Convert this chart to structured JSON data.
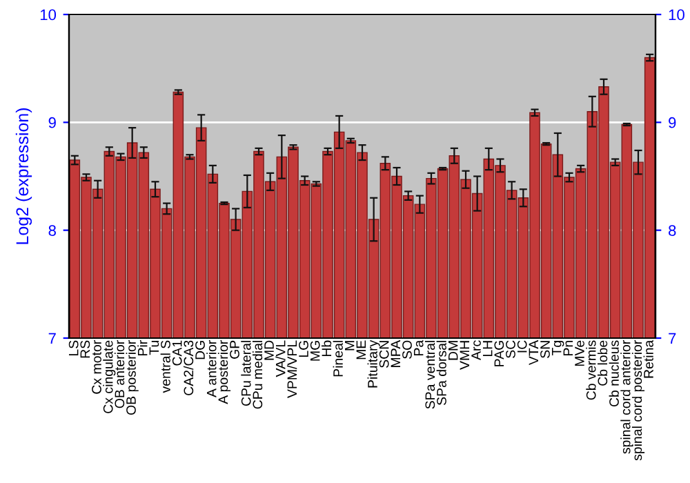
{
  "chart_data": {
    "type": "bar",
    "ylabel": "Log2 (expression)",
    "categories": [
      "LS",
      "RS",
      "Cx motor",
      "Cx cingulate",
      "OB anterior",
      "OB posterior",
      "Pir",
      "Tu",
      "ventral S",
      "CA1",
      "CA2/CA3",
      "DG",
      "A anterior",
      "A posterior",
      "GP",
      "CPu lateral",
      "CPu medial",
      "MD",
      "VA/VL",
      "VPM/VPL",
      "LG",
      "MG",
      "Hb",
      "Pineal",
      "M",
      "ME",
      "Pituitary",
      "SCN",
      "MPA",
      "SO",
      "Pa",
      "SPa ventral",
      "SPa dorsal",
      "DM",
      "VMH",
      "Arc",
      "LH",
      "PAG",
      "SC",
      "IC",
      "VTA",
      "SN",
      "Tg",
      "Pn",
      "MVe",
      "Cb vermis",
      "Cb lobe",
      "Cb nucleus",
      "spinal cord anterior",
      "spinal cord posterior",
      "Retina"
    ],
    "values": [
      8.65,
      8.49,
      8.38,
      8.73,
      8.68,
      8.81,
      8.72,
      8.38,
      8.2,
      9.28,
      8.68,
      8.95,
      8.52,
      8.25,
      8.1,
      8.36,
      8.73,
      8.45,
      8.68,
      8.77,
      8.46,
      8.43,
      8.73,
      8.91,
      8.83,
      8.72,
      8.1,
      8.62,
      8.5,
      8.32,
      8.24,
      8.48,
      8.57,
      8.69,
      8.47,
      8.34,
      8.66,
      8.6,
      8.37,
      8.3,
      9.09,
      8.8,
      8.7,
      8.49,
      8.57,
      9.1,
      9.33,
      8.63,
      8.98,
      8.63,
      9.6
    ],
    "errors": [
      0.04,
      0.03,
      0.08,
      0.04,
      0.03,
      0.14,
      0.05,
      0.07,
      0.05,
      0.02,
      0.02,
      0.12,
      0.08,
      0.01,
      0.1,
      0.15,
      0.03,
      0.08,
      0.2,
      0.02,
      0.04,
      0.02,
      0.03,
      0.15,
      0.02,
      0.07,
      0.2,
      0.06,
      0.08,
      0.04,
      0.08,
      0.05,
      0.01,
      0.07,
      0.08,
      0.16,
      0.1,
      0.06,
      0.08,
      0.08,
      0.03,
      0.01,
      0.2,
      0.04,
      0.03,
      0.14,
      0.07,
      0.03,
      0.01,
      0.11,
      0.03
    ],
    "color": "#c43a3a",
    "ylim": [
      7,
      10
    ],
    "yticks": [
      7,
      8,
      9,
      10
    ],
    "y2lim": [
      7,
      10
    ],
    "y2ticks": [
      7,
      8,
      9,
      10
    ],
    "grid": "y"
  }
}
